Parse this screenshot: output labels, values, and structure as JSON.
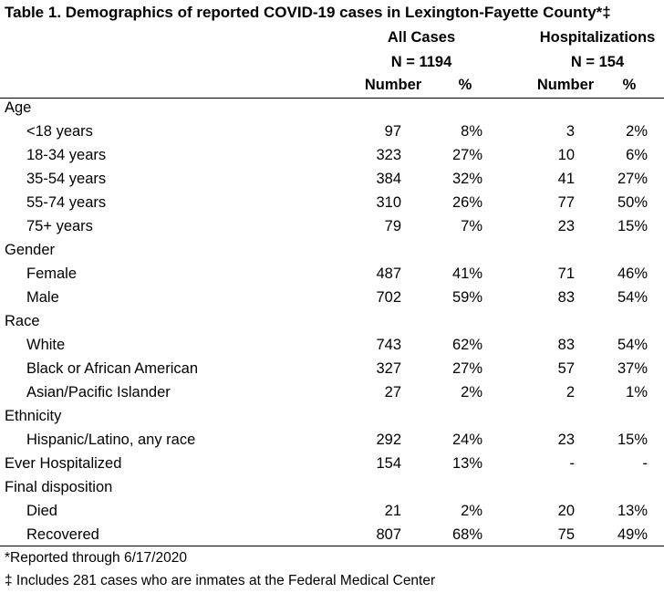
{
  "title": "Table 1. Demographics of reported COVID-19 cases in Lexington-Fayette County*‡",
  "groups": {
    "all": {
      "name": "All Cases",
      "n": "N = 1194"
    },
    "hosp": {
      "name": "Hospitalizations",
      "n": "N = 154"
    }
  },
  "columns": {
    "number": "Number",
    "percent": "%"
  },
  "rows": [
    {
      "label": "Age",
      "header": true
    },
    {
      "label": "<18 years",
      "values": [
        "97",
        "8%",
        "3",
        "2%"
      ]
    },
    {
      "label": "18-34 years",
      "values": [
        "323",
        "27%",
        "10",
        "6%"
      ]
    },
    {
      "label": "35-54 years",
      "values": [
        "384",
        "32%",
        "41",
        "27%"
      ]
    },
    {
      "label": "55-74 years",
      "values": [
        "310",
        "26%",
        "77",
        "50%"
      ]
    },
    {
      "label": "75+ years",
      "values": [
        "79",
        "7%",
        "23",
        "15%"
      ]
    },
    {
      "label": "Gender",
      "header": true
    },
    {
      "label": "Female",
      "values": [
        "487",
        "41%",
        "71",
        "46%"
      ]
    },
    {
      "label": "Male",
      "values": [
        "702",
        "59%",
        "83",
        "54%"
      ]
    },
    {
      "label": "Race",
      "header": true
    },
    {
      "label": "White",
      "values": [
        "743",
        "62%",
        "83",
        "54%"
      ]
    },
    {
      "label": "Black or African American",
      "values": [
        "327",
        "27%",
        "57",
        "37%"
      ]
    },
    {
      "label": "Asian/Pacific Islander",
      "values": [
        "27",
        "2%",
        "2",
        "1%"
      ]
    },
    {
      "label": "Ethnicity",
      "header": true
    },
    {
      "label": "Hispanic/Latino, any race",
      "values": [
        "292",
        "24%",
        "23",
        "15%"
      ]
    },
    {
      "label": "Ever Hospitalized",
      "header": true,
      "values": [
        "154",
        "13%",
        "-",
        "-"
      ]
    },
    {
      "label": "Final disposition",
      "header": true
    },
    {
      "label": "Died",
      "values": [
        "21",
        "2%",
        "20",
        "13%"
      ]
    },
    {
      "label": "Recovered",
      "values": [
        "807",
        "68%",
        "75",
        "49%"
      ]
    }
  ],
  "footnotes": [
    "*Reported through 6/17/2020",
    "‡ Includes 281 cases who are inmates at the Federal Medical Center"
  ]
}
